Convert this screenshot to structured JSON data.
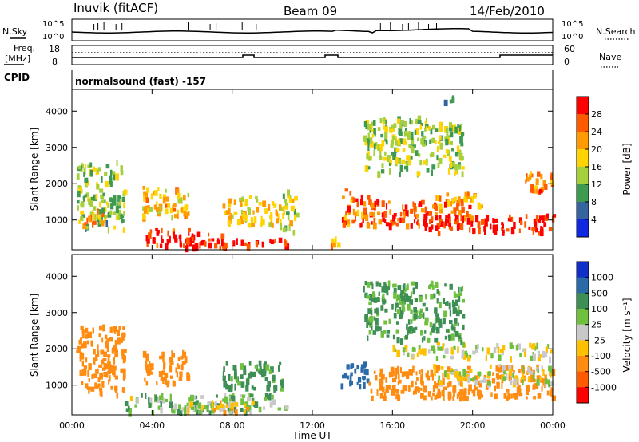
{
  "header": {
    "station": "Inuvik (fitACF)",
    "beam": "Beam 09",
    "date": "14/Feb/2010"
  },
  "panels": {
    "nsky": {
      "label": "N.Sky",
      "left_ticks": [
        "10^5",
        "10^0"
      ],
      "right_ticks": [
        "10^5",
        "10^0"
      ],
      "right_label": "N.Search"
    },
    "freq": {
      "label_line1": "Freq.",
      "label_line2": "[MHz]",
      "left_ticks": [
        "18",
        "8"
      ],
      "right_ticks": [
        "60",
        "0"
      ],
      "right_label": "Nave"
    },
    "cpid": {
      "label": "CPID",
      "mode_text": "normalsound (fast) -157"
    }
  },
  "legend": {
    "power": {
      "title": "Power [dB]",
      "ticks": [
        "28",
        "24",
        "20",
        "16",
        "12",
        "8",
        "4"
      ],
      "colors": [
        "#ff0000",
        "#ff5a00",
        "#ff9a00",
        "#ffd400",
        "#a6cf3c",
        "#3d9a50",
        "#35649e",
        "#1028e0"
      ]
    },
    "velocity": {
      "title": "Velocity [m s⁻¹]",
      "ticks": [
        "1000",
        "500",
        "100",
        "25",
        "-25",
        "-100",
        "-500",
        "-1000"
      ],
      "colors": [
        "#0f2fc8",
        "#2a6aa8",
        "#3d8f55",
        "#70c040",
        "#c8c8c8",
        "#ffc000",
        "#ff8c10",
        "#ff5a00",
        "#ff0000"
      ]
    }
  },
  "axes": {
    "ylabel": "Slant Range [km]",
    "xlabel": "Time UT",
    "yticks": [
      "1000",
      "2000",
      "3000",
      "4000"
    ],
    "xticks": [
      "00:00",
      "04:00",
      "08:00",
      "12:00",
      "16:00",
      "20:00",
      "00:00"
    ]
  },
  "chart_data": [
    {
      "type": "heatmap",
      "name": "Power",
      "xlabel": "Time UT",
      "ylabel": "Slant Range [km]",
      "xlim_hours": [
        0,
        24
      ],
      "ylim_km": [
        180,
        4600
      ],
      "colorbar": {
        "label": "Power [dB]",
        "range": [
          0,
          30
        ]
      },
      "regions": [
        {
          "x": [
            0.2,
            2.6
          ],
          "y": [
            700,
            2600
          ],
          "v": 12
        },
        {
          "x": [
            0.2,
            1.5
          ],
          "y": [
            800,
            1300
          ],
          "v": 22
        },
        {
          "x": [
            3.5,
            5.8
          ],
          "y": [
            1000,
            1900
          ],
          "v": 18
        },
        {
          "x": [
            3.5,
            7.5
          ],
          "y": [
            250,
            700
          ],
          "v": 27
        },
        {
          "x": [
            5.5,
            10.8
          ],
          "y": [
            200,
            450
          ],
          "v": 28
        },
        {
          "x": [
            7.5,
            10.5
          ],
          "y": [
            800,
            1600
          ],
          "v": 17
        },
        {
          "x": [
            10.5,
            11.2
          ],
          "y": [
            600,
            1800
          ],
          "v": 14
        },
        {
          "x": [
            12.8,
            13.3
          ],
          "y": [
            250,
            600
          ],
          "v": 20
        },
        {
          "x": [
            13.4,
            14.8
          ],
          "y": [
            800,
            1800
          ],
          "v": 23
        },
        {
          "x": [
            14.8,
            20.0
          ],
          "y": [
            800,
            1500
          ],
          "v": 25
        },
        {
          "x": [
            17.5,
            24.0
          ],
          "y": [
            600,
            1100
          ],
          "v": 28
        },
        {
          "x": [
            18.0,
            20.5
          ],
          "y": [
            1300,
            1700
          ],
          "v": 20
        },
        {
          "x": [
            22.5,
            24.0
          ],
          "y": [
            1700,
            2300
          ],
          "v": 22
        },
        {
          "x": [
            14.5,
            19.5
          ],
          "y": [
            2200,
            3800
          ],
          "v": 13
        },
        {
          "x": [
            18.5,
            19.0
          ],
          "y": [
            4200,
            4500
          ],
          "v": 6
        }
      ]
    },
    {
      "type": "heatmap",
      "name": "Velocity",
      "xlabel": "Time UT",
      "ylabel": "Slant Range [km]",
      "xlim_hours": [
        0,
        24
      ],
      "ylim_km": [
        180,
        4600
      ],
      "colorbar": {
        "label": "Velocity [m s⁻¹]",
        "range": [
          -1000,
          1000
        ]
      },
      "regions": [
        {
          "x": [
            0.2,
            2.6
          ],
          "y": [
            700,
            2600
          ],
          "v": -300
        },
        {
          "x": [
            3.5,
            5.8
          ],
          "y": [
            1000,
            1900
          ],
          "v": -250
        },
        {
          "x": [
            2.5,
            10.8
          ],
          "y": [
            200,
            700
          ],
          "v": 60
        },
        {
          "x": [
            5.5,
            9.0
          ],
          "y": [
            200,
            500
          ],
          "v": -50
        },
        {
          "x": [
            7.5,
            10.5
          ],
          "y": [
            800,
            1600
          ],
          "v": 150
        },
        {
          "x": [
            13.4,
            14.8
          ],
          "y": [
            900,
            1600
          ],
          "v": 900
        },
        {
          "x": [
            14.8,
            24.0
          ],
          "y": [
            600,
            1500
          ],
          "v": -400
        },
        {
          "x": [
            16.0,
            24.0
          ],
          "y": [
            1700,
            2100
          ],
          "v": 0
        },
        {
          "x": [
            18.0,
            24.0
          ],
          "y": [
            1000,
            1500
          ],
          "v": -10
        },
        {
          "x": [
            14.5,
            19.5
          ],
          "y": [
            2200,
            3800
          ],
          "v": 120
        }
      ]
    }
  ]
}
